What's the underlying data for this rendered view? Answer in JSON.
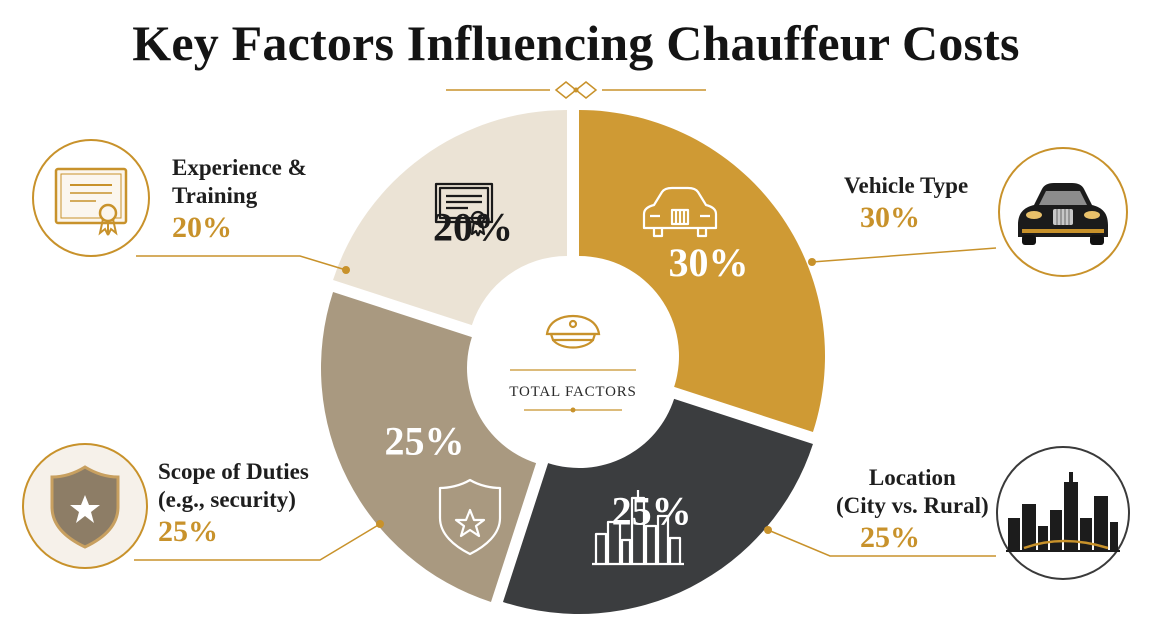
{
  "title": "Key Factors Influencing Chauffeur Costs",
  "colors": {
    "gold": "#cf9a34",
    "dark": "#3b3d3f",
    "taupe": "#a99980",
    "cream": "#ebe3d5",
    "accent": "#c8922b"
  },
  "center": {
    "label": "TOTAL FACTORS",
    "icon": "chauffeur-cap-icon"
  },
  "chart_data": {
    "type": "pie",
    "variant": "donut",
    "title": "Key Factors Influencing Chauffeur Costs",
    "categories": [
      "Vehicle Type",
      "Location (City vs. Rural)",
      "Scope of Duties (e.g., security)",
      "Experience & Training"
    ],
    "values": [
      30,
      25,
      25,
      20
    ],
    "labels": [
      "30%",
      "25%",
      "25%",
      "20%"
    ],
    "unit": "%",
    "legend": "callouts around chart"
  },
  "callouts": [
    {
      "name_lines": [
        "Vehicle Type"
      ],
      "value": "30%",
      "icon": "luxury-car-icon"
    },
    {
      "name_lines": [
        "Location",
        "(City vs. Rural)"
      ],
      "value": "25%",
      "icon": "city-skyline-icon"
    },
    {
      "name_lines": [
        "Scope of Duties",
        "(e.g., security)"
      ],
      "value": "25%",
      "icon": "shield-star-icon"
    },
    {
      "name_lines": [
        "Experience &",
        "Training"
      ],
      "value": "20%",
      "icon": "certificate-icon"
    }
  ]
}
